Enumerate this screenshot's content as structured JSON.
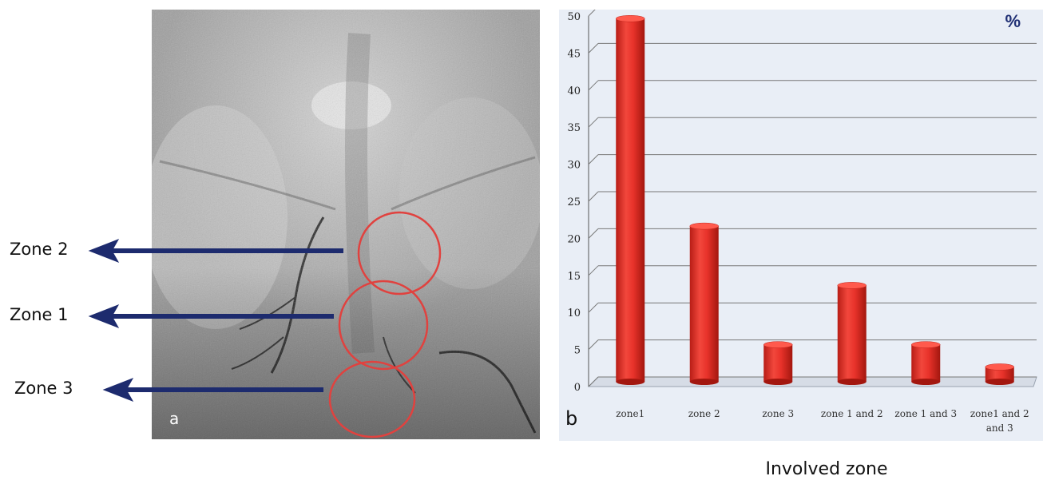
{
  "panel_a": {
    "letter": "a",
    "zones": [
      {
        "label": "Zone 2"
      },
      {
        "label": "Zone 1"
      },
      {
        "label": "Zone 3"
      }
    ],
    "colors": {
      "circle": "#e0423f",
      "arrow": "#1d2b6e"
    }
  },
  "panel_b": {
    "letter": "b",
    "unit": "%"
  },
  "chart_data": {
    "type": "bar",
    "title": "",
    "xlabel": "Involved zone",
    "ylabel": "%",
    "categories": [
      "zone1",
      "zone 2",
      "zone 3",
      "zone 1  and 2",
      "zone 1 and 3",
      "zone1 and 2 and 3"
    ],
    "values": [
      49,
      21,
      5,
      13,
      5,
      2
    ],
    "ylim": [
      0,
      50
    ],
    "yticks": [
      0,
      5,
      10,
      15,
      20,
      25,
      30,
      35,
      40,
      45,
      50
    ],
    "grid": true,
    "bar_color": "#e8322a",
    "background": "#e9eef6"
  }
}
